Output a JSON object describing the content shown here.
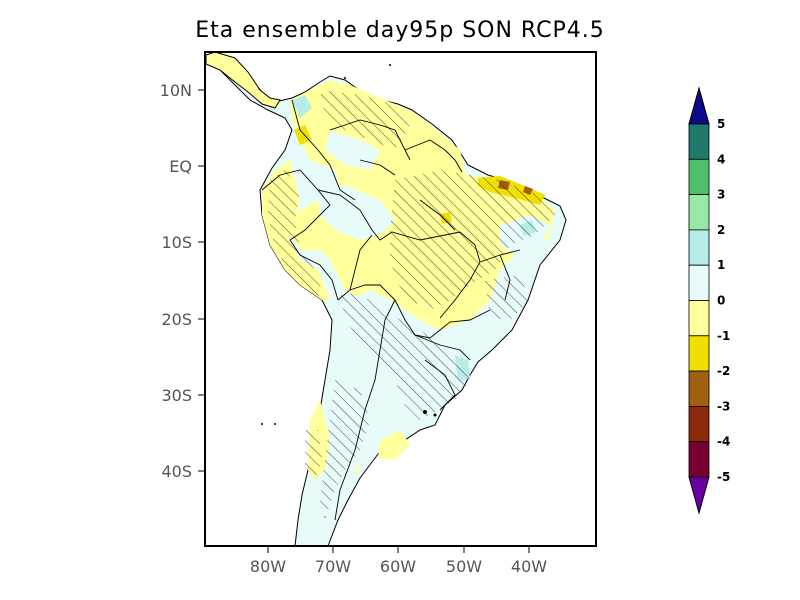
{
  "title": "Eta ensemble day95p SON RCP4.5",
  "map": {
    "lat_ticks": [
      "10N",
      "EQ",
      "10S",
      "20S",
      "30S",
      "40S"
    ],
    "lon_ticks": [
      "80W",
      "70W",
      "60W",
      "50W",
      "40W"
    ],
    "lat_range": [
      -50,
      15
    ],
    "lon_range": [
      -90,
      -30
    ],
    "hatching": "diagonal hatching marks statistically significant areas"
  },
  "colorbar": {
    "labels": [
      "5",
      "4",
      "3",
      "2",
      "1",
      "0",
      "-1",
      "-2",
      "-3",
      "-4",
      "-5"
    ],
    "colors": {
      "gt5": "#0a0a8a",
      "4_5": "#1f7a6e",
      "3_4": "#4fbf6a",
      "2_3": "#9ae8a8",
      "1_2": "#b8ece8",
      "0_1": "#e6fbfa",
      "m1_0": "#ffff9c",
      "m2_m1": "#f0e000",
      "m3_m2": "#a06010",
      "m4_m3": "#8a2a0a",
      "m5_m4": "#780030",
      "lt_m5": "#6a00a0"
    }
  }
}
